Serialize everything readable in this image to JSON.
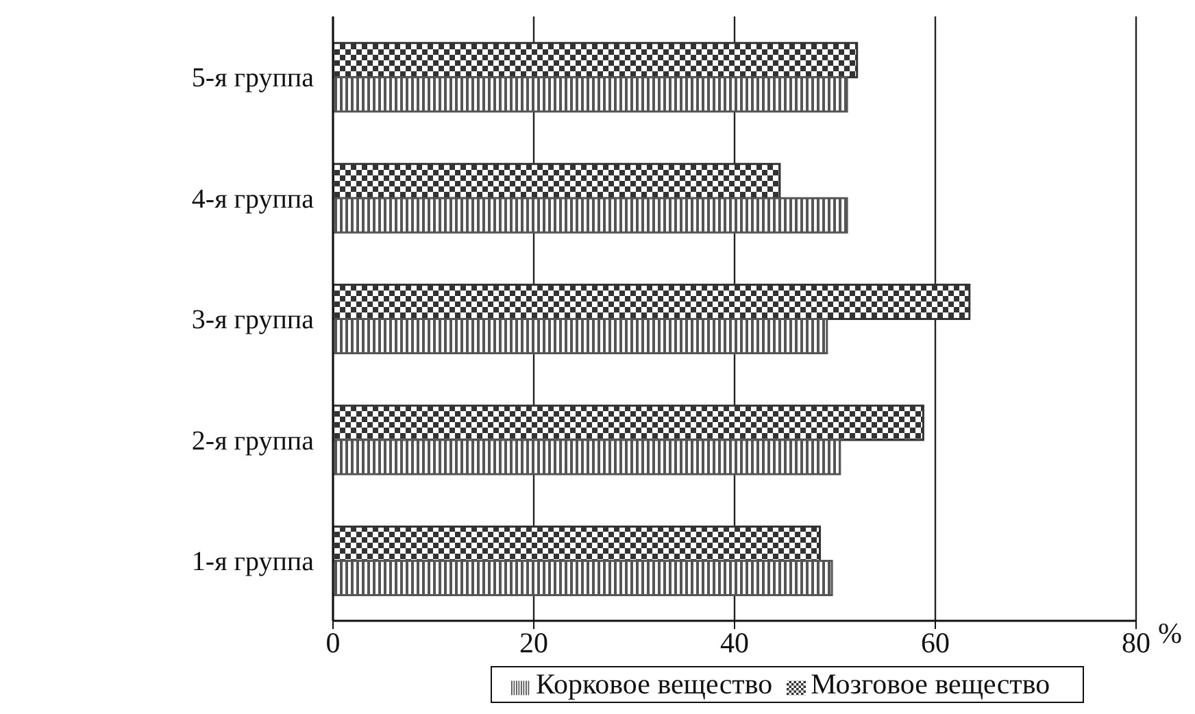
{
  "chart_data": {
    "type": "bar",
    "orientation": "horizontal",
    "xlabel": "%",
    "categories": [
      "5-я группа",
      "4-я группа",
      "3-я группа",
      "2-я группа",
      "1-я группа"
    ],
    "series": [
      {
        "name": "Корковое вещество",
        "color": "#555555",
        "values": [
          51.2,
          51.2,
          49.2,
          50.5,
          49.7
        ]
      },
      {
        "name": "Мозговое вещество",
        "color": "#333333",
        "values": [
          52.2,
          44.5,
          63.4,
          58.8,
          48.5
        ]
      }
    ],
    "xlim": [
      0,
      80
    ],
    "xticks": [
      0,
      20,
      40,
      60,
      80
    ],
    "grid": "x",
    "legend": "bottom"
  }
}
